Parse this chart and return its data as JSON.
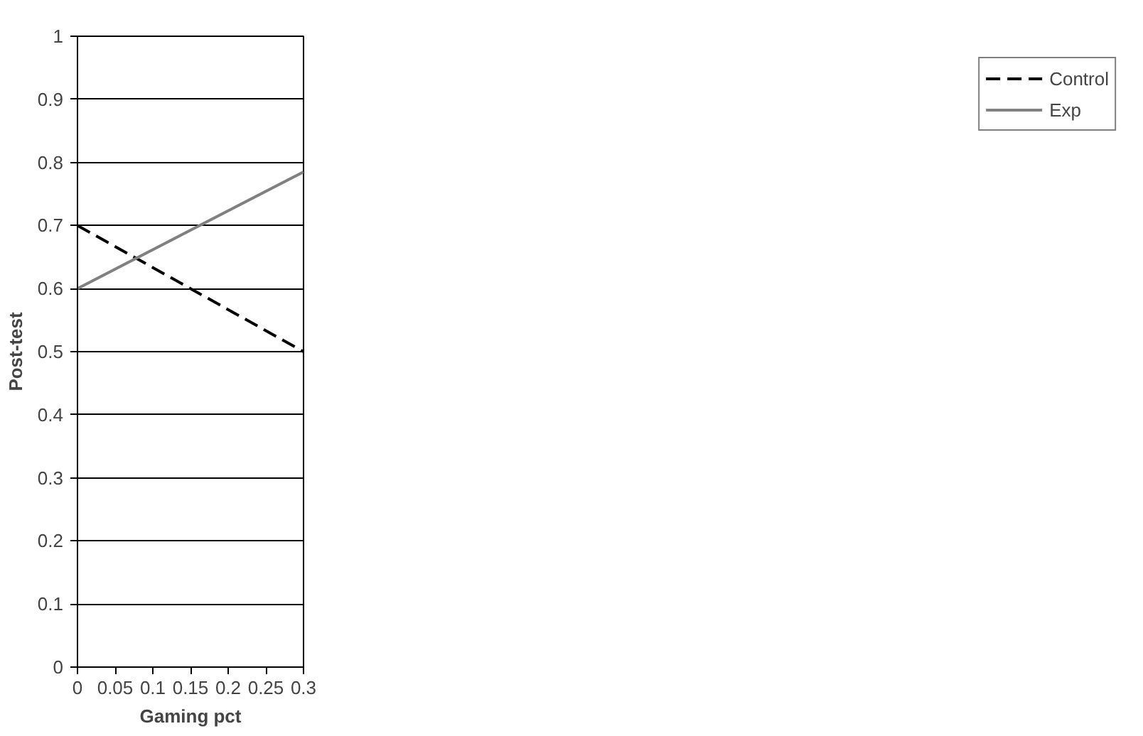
{
  "chart_data": {
    "type": "line",
    "xlabel": "Gaming pct",
    "ylabel": "Post-test",
    "x": [
      0,
      0.3
    ],
    "series": [
      {
        "name": "Control",
        "color": "#000000",
        "line_style": "dashed",
        "values": [
          0.7,
          0.5
        ]
      },
      {
        "name": "Exp",
        "color": "#808080",
        "line_style": "solid",
        "values": [
          0.6,
          0.785
        ]
      }
    ],
    "xlim": [
      0,
      0.3
    ],
    "xticks": [
      0,
      0.05,
      0.1,
      0.15,
      0.2,
      0.25,
      0.3
    ],
    "ylim": [
      0,
      1
    ],
    "yticks": [
      0,
      0.1,
      0.2,
      0.3,
      0.4,
      0.5,
      0.6,
      0.7,
      0.8,
      0.9,
      1
    ],
    "grid": "y",
    "legend": "right",
    "marker": "none"
  }
}
